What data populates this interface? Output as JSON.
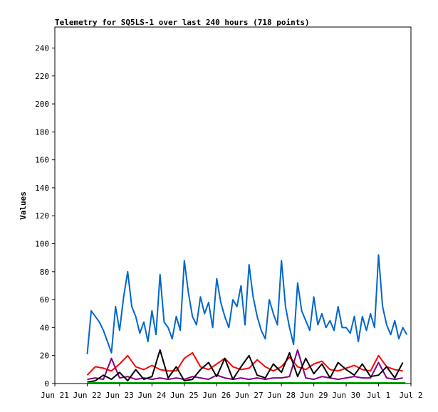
{
  "chart_data": {
    "type": "line",
    "title": "Telemetry for SQ5LS-1 over last 240 hours (718 points)",
    "xlabel": "",
    "ylabel": "Values",
    "xlim": [
      "2021-06-21",
      "2021-07-02"
    ],
    "ylim": [
      0,
      255
    ],
    "x_ticks": [
      "Jun 21",
      "Jun 22",
      "Jun 23",
      "Jun 24",
      "Jun 25",
      "Jun 26",
      "Jun 27",
      "Jun 28",
      "Jun 29",
      "Jun 30",
      "Jul 1",
      "Jul 2"
    ],
    "y_ticks": [
      0,
      20,
      40,
      60,
      80,
      100,
      120,
      140,
      160,
      180,
      200,
      220,
      240
    ],
    "grid": false,
    "legend": "none",
    "series": [
      {
        "color": "#0066cc",
        "x": [
          "2021-06-22 00:00",
          "2021-06-22 03:00",
          "2021-06-22 06:00",
          "2021-06-22 09:00",
          "2021-06-22 12:00",
          "2021-06-22 15:00",
          "2021-06-22 18:00",
          "2021-06-22 21:00",
          "2021-06-23 00:00",
          "2021-06-23 03:00",
          "2021-06-23 06:00",
          "2021-06-23 09:00",
          "2021-06-23 12:00",
          "2021-06-23 15:00",
          "2021-06-23 18:00",
          "2021-06-23 21:00",
          "2021-06-24 00:00",
          "2021-06-24 03:00",
          "2021-06-24 06:00",
          "2021-06-24 09:00",
          "2021-06-24 12:00",
          "2021-06-24 15:00",
          "2021-06-24 18:00",
          "2021-06-24 21:00",
          "2021-06-25 00:00",
          "2021-06-25 03:00",
          "2021-06-25 06:00",
          "2021-06-25 09:00",
          "2021-06-25 12:00",
          "2021-06-25 15:00",
          "2021-06-25 18:00",
          "2021-06-25 21:00",
          "2021-06-26 00:00",
          "2021-06-26 03:00",
          "2021-06-26 06:00",
          "2021-06-26 09:00",
          "2021-06-26 12:00",
          "2021-06-26 15:00",
          "2021-06-26 18:00",
          "2021-06-26 21:00",
          "2021-06-27 00:00",
          "2021-06-27 03:00",
          "2021-06-27 06:00",
          "2021-06-27 09:00",
          "2021-06-27 12:00",
          "2021-06-27 15:00",
          "2021-06-27 18:00",
          "2021-06-27 21:00",
          "2021-06-28 00:00",
          "2021-06-28 03:00",
          "2021-06-28 06:00",
          "2021-06-28 09:00",
          "2021-06-28 12:00",
          "2021-06-28 15:00",
          "2021-06-28 18:00",
          "2021-06-28 21:00",
          "2021-06-29 00:00",
          "2021-06-29 03:00",
          "2021-06-29 06:00",
          "2021-06-29 09:00",
          "2021-06-29 12:00",
          "2021-06-29 15:00",
          "2021-06-29 18:00",
          "2021-06-29 21:00",
          "2021-06-30 00:00",
          "2021-06-30 03:00",
          "2021-06-30 06:00",
          "2021-06-30 09:00",
          "2021-06-30 12:00",
          "2021-06-30 15:00",
          "2021-06-30 18:00",
          "2021-06-30 21:00",
          "2021-07-01 00:00",
          "2021-07-01 03:00",
          "2021-07-01 06:00",
          "2021-07-01 09:00",
          "2021-07-01 12:00",
          "2021-07-01 15:00",
          "2021-07-01 18:00",
          "2021-07-01 21:00"
        ],
        "values": [
          21,
          52,
          48,
          44,
          38,
          30,
          22,
          55,
          38,
          62,
          80,
          55,
          48,
          36,
          44,
          30,
          52,
          35,
          78,
          44,
          40,
          32,
          48,
          38,
          88,
          65,
          48,
          42,
          62,
          50,
          58,
          40,
          75,
          58,
          48,
          40,
          60,
          55,
          70,
          42,
          85,
          62,
          48,
          38,
          32,
          60,
          50,
          42,
          88,
          55,
          40,
          28,
          72,
          52,
          45,
          38,
          62,
          42,
          50,
          40,
          45,
          38,
          55,
          40,
          40,
          36,
          48,
          30,
          48,
          38,
          50,
          40,
          92,
          55,
          42,
          35,
          45,
          32,
          40,
          35
        ]
      },
      {
        "color": "#ff0000",
        "x": [
          "2021-06-22 00:00",
          "2021-06-22 06:00",
          "2021-06-22 12:00",
          "2021-06-22 18:00",
          "2021-06-23 00:00",
          "2021-06-23 06:00",
          "2021-06-23 12:00",
          "2021-06-23 18:00",
          "2021-06-24 00:00",
          "2021-06-24 06:00",
          "2021-06-24 12:00",
          "2021-06-24 18:00",
          "2021-06-25 00:00",
          "2021-06-25 06:00",
          "2021-06-25 12:00",
          "2021-06-25 18:00",
          "2021-06-26 00:00",
          "2021-06-26 06:00",
          "2021-06-26 12:00",
          "2021-06-26 18:00",
          "2021-06-27 00:00",
          "2021-06-27 06:00",
          "2021-06-27 12:00",
          "2021-06-27 18:00",
          "2021-06-28 00:00",
          "2021-06-28 06:00",
          "2021-06-28 12:00",
          "2021-06-28 18:00",
          "2021-06-29 00:00",
          "2021-06-29 06:00",
          "2021-06-29 12:00",
          "2021-06-29 18:00",
          "2021-06-30 00:00",
          "2021-06-30 06:00",
          "2021-06-30 12:00",
          "2021-06-30 18:00",
          "2021-07-01 00:00",
          "2021-07-01 06:00",
          "2021-07-01 12:00",
          "2021-07-01 18:00"
        ],
        "values": [
          6,
          12,
          11,
          9,
          14,
          20,
          12,
          10,
          13,
          10,
          9,
          9,
          18,
          22,
          12,
          10,
          14,
          18,
          12,
          10,
          11,
          17,
          12,
          9,
          12,
          19,
          12,
          10,
          14,
          16,
          10,
          9,
          11,
          13,
          10,
          9,
          20,
          12,
          10,
          9
        ]
      },
      {
        "color": "#800080",
        "x": [
          "2021-06-22 00:00",
          "2021-06-22 06:00",
          "2021-06-22 12:00",
          "2021-06-22 18:00",
          "2021-06-23 00:00",
          "2021-06-23 06:00",
          "2021-06-23 12:00",
          "2021-06-23 18:00",
          "2021-06-24 00:00",
          "2021-06-24 06:00",
          "2021-06-24 12:00",
          "2021-06-24 18:00",
          "2021-06-25 00:00",
          "2021-06-25 06:00",
          "2021-06-25 12:00",
          "2021-06-25 18:00",
          "2021-06-26 00:00",
          "2021-06-26 06:00",
          "2021-06-26 12:00",
          "2021-06-26 18:00",
          "2021-06-27 00:00",
          "2021-06-27 06:00",
          "2021-06-27 12:00",
          "2021-06-27 18:00",
          "2021-06-28 00:00",
          "2021-06-28 06:00",
          "2021-06-28 12:00",
          "2021-06-28 18:00",
          "2021-06-29 00:00",
          "2021-06-29 06:00",
          "2021-06-29 12:00",
          "2021-06-29 18:00",
          "2021-06-30 00:00",
          "2021-06-30 06:00",
          "2021-06-30 12:00",
          "2021-06-30 18:00",
          "2021-07-01 00:00",
          "2021-07-01 06:00",
          "2021-07-01 12:00",
          "2021-07-01 18:00"
        ],
        "values": [
          3,
          4,
          3,
          18,
          4,
          5,
          3,
          4,
          3,
          4,
          3,
          4,
          3,
          5,
          4,
          3,
          6,
          4,
          3,
          4,
          3,
          4,
          3,
          4,
          4,
          5,
          24,
          4,
          3,
          5,
          4,
          3,
          4,
          5,
          4,
          4,
          15,
          4,
          3,
          4
        ]
      },
      {
        "color": "#000000",
        "x": [
          "2021-06-22 00:00",
          "2021-06-22 06:00",
          "2021-06-22 12:00",
          "2021-06-22 18:00",
          "2021-06-23 00:00",
          "2021-06-23 06:00",
          "2021-06-23 12:00",
          "2021-06-23 18:00",
          "2021-06-24 00:00",
          "2021-06-24 06:00",
          "2021-06-24 12:00",
          "2021-06-24 18:00",
          "2021-06-25 00:00",
          "2021-06-25 06:00",
          "2021-06-25 12:00",
          "2021-06-25 18:00",
          "2021-06-26 00:00",
          "2021-06-26 06:00",
          "2021-06-26 12:00",
          "2021-06-26 18:00",
          "2021-06-27 00:00",
          "2021-06-27 06:00",
          "2021-06-27 12:00",
          "2021-06-27 18:00",
          "2021-06-28 00:00",
          "2021-06-28 06:00",
          "2021-06-28 12:00",
          "2021-06-28 18:00",
          "2021-06-29 00:00",
          "2021-06-29 06:00",
          "2021-06-29 12:00",
          "2021-06-29 18:00",
          "2021-06-30 00:00",
          "2021-06-30 06:00",
          "2021-06-30 12:00",
          "2021-06-30 18:00",
          "2021-07-01 00:00",
          "2021-07-01 06:00",
          "2021-07-01 12:00",
          "2021-07-01 18:00"
        ],
        "values": [
          1,
          2,
          6,
          3,
          8,
          2,
          10,
          3,
          5,
          24,
          4,
          12,
          2,
          3,
          10,
          15,
          5,
          18,
          3,
          12,
          20,
          6,
          4,
          14,
          8,
          22,
          5,
          18,
          7,
          14,
          4,
          15,
          10,
          6,
          14,
          5,
          6,
          12,
          4,
          15
        ]
      },
      {
        "color": "#00aa00",
        "x": [
          "2021-06-22 00:00",
          "2021-06-23 00:00",
          "2021-06-24 00:00",
          "2021-06-25 00:00",
          "2021-06-26 00:00",
          "2021-06-27 00:00",
          "2021-06-28 00:00",
          "2021-06-29 00:00",
          "2021-06-30 00:00",
          "2021-07-01 00:00",
          "2021-07-01 20:00"
        ],
        "values": [
          0.5,
          0.5,
          0.5,
          0.5,
          0.5,
          0.5,
          0.5,
          0.5,
          0.5,
          0.5,
          0.5
        ]
      }
    ]
  }
}
